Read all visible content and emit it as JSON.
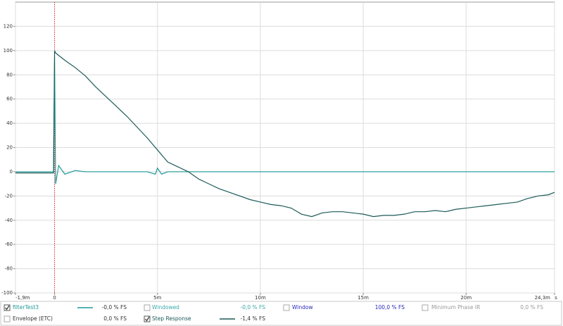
{
  "chart_data": {
    "type": "line",
    "x_unit": "s",
    "xlim": [
      -1.9,
      24.3
    ],
    "ylim": [
      -100,
      140
    ],
    "xticks": [
      {
        "value": -1.9,
        "label": "-1,9m"
      },
      0,
      {
        "value": 5,
        "label": "5m"
      },
      {
        "value": 10,
        "label": "10m"
      },
      {
        "value": 15,
        "label": "15m"
      },
      {
        "value": 20,
        "label": "20m"
      },
      {
        "value": 24.3,
        "label": "24,3m"
      }
    ],
    "yticks": [
      -100,
      -80,
      -60,
      -40,
      -20,
      0,
      20,
      40,
      60,
      80,
      100,
      120
    ],
    "grid": true,
    "x": [
      -1.9,
      -0.05,
      0,
      0.05,
      0.2,
      0.5,
      1,
      1.5,
      2,
      2.5,
      3,
      3.5,
      4,
      4.5,
      4.9,
      5,
      5.2,
      5.5,
      6,
      6.5,
      7,
      7.5,
      8,
      8.5,
      9,
      9.5,
      10,
      10.5,
      11,
      11.5,
      12,
      12.5,
      13,
      13.5,
      14,
      14.5,
      15,
      15.5,
      16,
      16.5,
      17,
      17.5,
      18,
      18.5,
      19,
      19.5,
      20,
      20.5,
      21,
      21.5,
      22,
      22.5,
      23,
      23.5,
      24,
      24.3
    ],
    "series": [
      {
        "name": "filterTest3",
        "color": "#1e9a98",
        "checked": true,
        "readout": "-0,0 % FS",
        "values": [
          0,
          0,
          95,
          -10,
          5,
          -2,
          1,
          0,
          0,
          0,
          0,
          0,
          0,
          0,
          -2,
          3,
          -2,
          0,
          0,
          0,
          0,
          0,
          0,
          0,
          0,
          0,
          0,
          0,
          0,
          0,
          0,
          0,
          0,
          0,
          0,
          0,
          0,
          0,
          0,
          0,
          0,
          0,
          0,
          0,
          0,
          0,
          0,
          0,
          0,
          0,
          0,
          0,
          0,
          0,
          0,
          0
        ]
      },
      {
        "name": "Step Response",
        "color": "#1b5a57",
        "checked": true,
        "readout": "-1,4 % FS",
        "values": [
          -1,
          -1,
          100,
          98,
          96,
          92,
          86,
          79,
          70,
          62,
          54,
          46,
          37,
          28,
          20,
          18,
          14,
          8,
          4,
          0,
          -6,
          -10,
          -14,
          -17,
          -20,
          -23,
          -25,
          -27,
          -28,
          -30,
          -35,
          -37,
          -34,
          -33,
          -33,
          -34,
          -35,
          -37,
          -36,
          -36,
          -35,
          -33,
          -33,
          -32,
          -33,
          -31,
          -30,
          -29,
          -28,
          -27,
          -26,
          -25,
          -22,
          -20,
          -19,
          -17
        ]
      }
    ],
    "other_traces": [
      {
        "name": "Windowed",
        "color": "#39aaa8",
        "checked": false,
        "readout": "-0,0 % FS"
      },
      {
        "name": "Window",
        "color": "#2a2ab8",
        "checked": false,
        "readout": "100,0 % FS"
      },
      {
        "name": "Minimum Phase IR",
        "color": "#9a9a9a",
        "checked": false,
        "readout": "0,0 % FS"
      },
      {
        "name": "Envelope (ETC)",
        "color": "#333333",
        "checked": false,
        "readout": "0,0 % FS"
      }
    ]
  }
}
